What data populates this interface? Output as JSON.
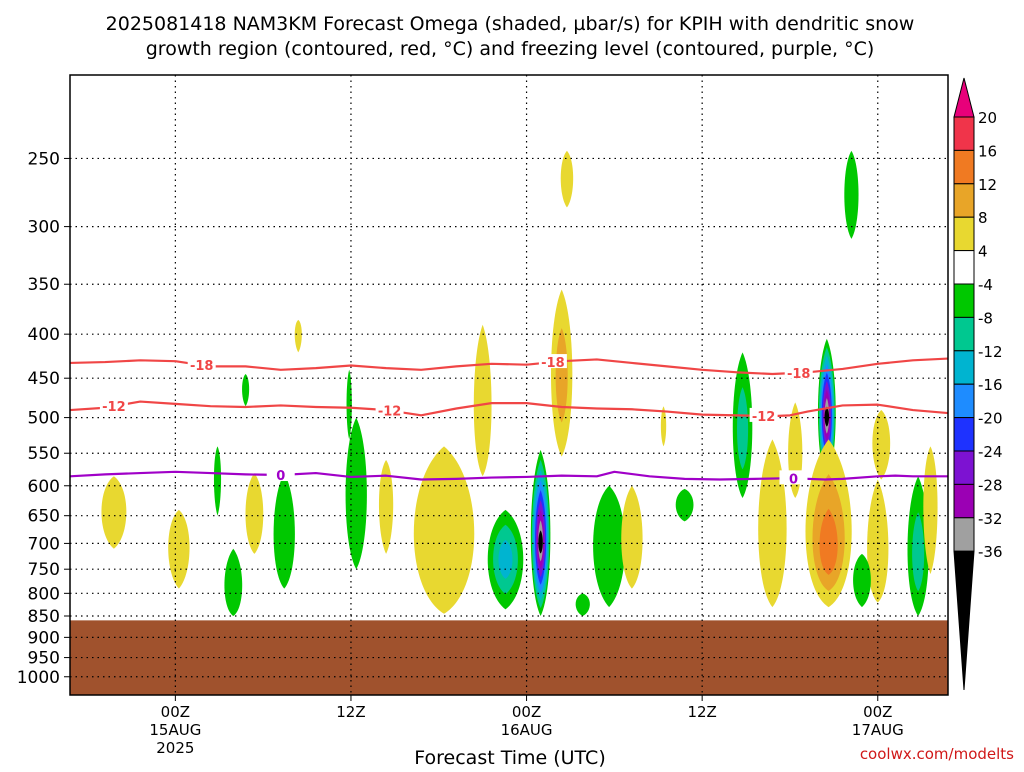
{
  "title": {
    "line1": "2025081418 NAM3KM Forecast Omega (shaded, µbar/s) for KPIH with dendritic snow",
    "line2": "growth region (contoured, red, °C) and freezing level (contoured, purple, °C)"
  },
  "credit": "coolwx.com/modelts",
  "chart_data": {
    "type": "heatmap",
    "title": "2025081418 NAM3KM Forecast Omega (shaded, µbar/s) for KPIH with dendritic snow growth region (contoured, red, °C) and freezing level (contoured, purple, °C)",
    "xlabel": "Forecast Time (UTC)",
    "xlim": [
      -6,
      44
    ],
    "ylim": [
      1050,
      200
    ],
    "y_scale": "log-pressure",
    "grid": true,
    "y_ticks": [
      250,
      300,
      350,
      400,
      450,
      500,
      550,
      600,
      650,
      700,
      750,
      800,
      850,
      900,
      950,
      1000
    ],
    "x_ticks": [
      {
        "h": 0,
        "label": "00Z",
        "sub1": "15AUG",
        "sub2": "2025"
      },
      {
        "h": 10,
        "label": "12Z",
        "sub1": "",
        "sub2": ""
      },
      {
        "h": 20,
        "label": "00Z",
        "sub1": "16AUG",
        "sub2": ""
      },
      {
        "h": 30,
        "label": "12Z",
        "sub1": "",
        "sub2": ""
      },
      {
        "h": 40,
        "label": "00Z",
        "sub1": "17AUG",
        "sub2": ""
      }
    ],
    "colorbar": {
      "levels": [
        20,
        16,
        12,
        8,
        4,
        -4,
        -8,
        -12,
        -16,
        -20,
        -24,
        -28,
        -32,
        -36
      ],
      "colors": [
        "#e8007a",
        "#f0344a",
        "#f07a22",
        "#e8a528",
        "#e8d830",
        "#ffffff",
        "#00c800",
        "#00c890",
        "#00b4d0",
        "#1e8cff",
        "#1e32ff",
        "#7d12d2",
        "#9b00b4",
        "#a0a0a0",
        "#000000"
      ]
    },
    "ground_color": "#a0522d",
    "ground_surface_hpa": 860,
    "contours": [
      {
        "level": -18,
        "color": "#f04646",
        "label": "-18",
        "points": [
          [
            -6,
            432
          ],
          [
            -4,
            431
          ],
          [
            -2,
            429
          ],
          [
            0,
            430
          ],
          [
            1,
            433
          ],
          [
            2,
            436
          ],
          [
            4,
            436
          ],
          [
            6,
            440
          ],
          [
            8,
            438
          ],
          [
            10,
            435
          ],
          [
            12,
            438
          ],
          [
            14,
            440
          ],
          [
            16,
            436
          ],
          [
            18,
            433
          ],
          [
            20,
            434
          ],
          [
            22,
            430
          ],
          [
            24,
            428
          ],
          [
            26,
            432
          ],
          [
            28,
            436
          ],
          [
            30,
            440
          ],
          [
            32,
            443
          ],
          [
            34,
            445
          ],
          [
            36,
            443
          ],
          [
            38,
            439
          ],
          [
            40,
            433
          ],
          [
            42,
            429
          ],
          [
            44,
            427
          ]
        ],
        "label_at": [
          [
            1.5,
            "-18"
          ],
          [
            21.5,
            "-18"
          ],
          [
            35.5,
            "-18"
          ]
        ]
      },
      {
        "level": -12,
        "color": "#f04646",
        "label": "-12",
        "points": [
          [
            -6,
            490
          ],
          [
            -4,
            487
          ],
          [
            -2,
            479
          ],
          [
            0,
            482
          ],
          [
            2,
            485
          ],
          [
            4,
            486
          ],
          [
            6,
            484
          ],
          [
            8,
            486
          ],
          [
            10,
            487
          ],
          [
            12,
            490
          ],
          [
            14,
            497
          ],
          [
            16,
            488
          ],
          [
            18,
            481
          ],
          [
            20,
            481
          ],
          [
            22,
            486
          ],
          [
            24,
            488
          ],
          [
            26,
            489
          ],
          [
            28,
            492
          ],
          [
            30,
            496
          ],
          [
            32,
            497
          ],
          [
            34,
            498
          ],
          [
            35,
            497
          ],
          [
            36,
            492
          ],
          [
            38,
            484
          ],
          [
            40,
            483
          ],
          [
            42,
            490
          ],
          [
            44,
            494
          ]
        ],
        "label_at": [
          [
            -3.5,
            "-12"
          ],
          [
            12.2,
            "-12"
          ],
          [
            33.5,
            "-12"
          ]
        ]
      },
      {
        "level": 0,
        "color": "#a000c8",
        "label": "0",
        "points": [
          [
            -6,
            585
          ],
          [
            -4,
            582
          ],
          [
            -2,
            580
          ],
          [
            0,
            578
          ],
          [
            2,
            580
          ],
          [
            4,
            582
          ],
          [
            6,
            583
          ],
          [
            8,
            580
          ],
          [
            10,
            586
          ],
          [
            12,
            584
          ],
          [
            14,
            590
          ],
          [
            16,
            589
          ],
          [
            18,
            587
          ],
          [
            20,
            586
          ],
          [
            22,
            584
          ],
          [
            24,
            585
          ],
          [
            25,
            578
          ],
          [
            27,
            585
          ],
          [
            29,
            589
          ],
          [
            31,
            590
          ],
          [
            33,
            589
          ],
          [
            35,
            588
          ],
          [
            37,
            590
          ],
          [
            38,
            589
          ],
          [
            40,
            585
          ],
          [
            41,
            584
          ],
          [
            42,
            585
          ],
          [
            44,
            585
          ]
        ],
        "label_at": [
          [
            6,
            "0"
          ],
          [
            35.2,
            "0"
          ]
        ]
      }
    ],
    "omega_cells": [
      {
        "h": 20.8,
        "p": 700,
        "hw": 0.55,
        "top": 545,
        "bot": 850,
        "v": -38
      },
      {
        "h": 18.8,
        "p": 730,
        "hw": 1.0,
        "top": 640,
        "bot": 835,
        "v": -17
      },
      {
        "h": 24.7,
        "p": 700,
        "hw": 0.9,
        "top": 600,
        "bot": 830,
        "v": -9
      },
      {
        "h": 32.3,
        "p": 520,
        "hw": 0.55,
        "top": 420,
        "bot": 620,
        "v": -13
      },
      {
        "h": 37.1,
        "p": 500,
        "hw": 0.5,
        "top": 405,
        "bot": 595,
        "v": -38
      },
      {
        "h": 37.2,
        "p": 720,
        "hw": 1.3,
        "top": 530,
        "bot": 830,
        "v": 15
      },
      {
        "h": 34.0,
        "p": 700,
        "hw": 0.8,
        "top": 530,
        "bot": 830,
        "v": 5
      },
      {
        "h": 15.3,
        "p": 700,
        "hw": 1.7,
        "top": 540,
        "bot": 845,
        "v": 6
      },
      {
        "h": 22.0,
        "p": 450,
        "hw": 0.6,
        "top": 355,
        "bot": 555,
        "v": 10
      },
      {
        "h": 17.5,
        "p": 500,
        "hw": 0.5,
        "top": 390,
        "bot": 585,
        "v": 5
      },
      {
        "h": 10.3,
        "p": 620,
        "hw": 0.6,
        "top": 500,
        "bot": 750,
        "v": -6
      },
      {
        "h": 12.0,
        "p": 620,
        "hw": 0.4,
        "top": 560,
        "bot": 720,
        "v": 4
      },
      {
        "h": 26.0,
        "p": 700,
        "hw": 0.6,
        "top": 600,
        "bot": 790,
        "v": 4
      },
      {
        "h": 40.0,
        "p": 750,
        "hw": 0.6,
        "top": 590,
        "bot": 820,
        "v": 6
      },
      {
        "h": 40.2,
        "p": 530,
        "hw": 0.5,
        "top": 490,
        "bot": 590,
        "v": 5
      },
      {
        "h": 42.3,
        "p": 730,
        "hw": 0.6,
        "top": 585,
        "bot": 850,
        "v": -10
      },
      {
        "h": 43.0,
        "p": 620,
        "hw": 0.4,
        "top": 540,
        "bot": 760,
        "v": 4
      },
      {
        "h": 35.3,
        "p": 560,
        "hw": 0.4,
        "top": 480,
        "bot": 620,
        "v": 5
      },
      {
        "h": -3.5,
        "p": 640,
        "hw": 0.7,
        "top": 585,
        "bot": 710,
        "v": 4
      },
      {
        "h": 0.2,
        "p": 700,
        "hw": 0.6,
        "top": 640,
        "bot": 790,
        "v": 4
      },
      {
        "h": 2.4,
        "p": 580,
        "hw": 0.2,
        "top": 540,
        "bot": 650,
        "v": -5
      },
      {
        "h": 3.3,
        "p": 800,
        "hw": 0.5,
        "top": 710,
        "bot": 850,
        "v": -5
      },
      {
        "h": 4.5,
        "p": 650,
        "hw": 0.5,
        "top": 580,
        "bot": 720,
        "v": 4
      },
      {
        "h": 6.2,
        "p": 700,
        "hw": 0.6,
        "top": 580,
        "bot": 790,
        "v": -5
      },
      {
        "h": 7.0,
        "p": 395,
        "hw": 0.2,
        "top": 385,
        "bot": 420,
        "v": 4
      },
      {
        "h": 4.0,
        "p": 460,
        "hw": 0.2,
        "top": 445,
        "bot": 485,
        "v": -5
      },
      {
        "h": 9.9,
        "p": 480,
        "hw": 0.15,
        "top": 440,
        "bot": 530,
        "v": -5
      },
      {
        "h": 22.3,
        "p": 262,
        "hw": 0.35,
        "top": 245,
        "bot": 285,
        "v": 4
      },
      {
        "h": 38.5,
        "p": 275,
        "hw": 0.4,
        "top": 245,
        "bot": 310,
        "v": -5
      },
      {
        "h": 27.8,
        "p": 510,
        "hw": 0.15,
        "top": 485,
        "bot": 540,
        "v": 4
      },
      {
        "h": 29.0,
        "p": 630,
        "hw": 0.5,
        "top": 605,
        "bot": 660,
        "v": -5
      },
      {
        "h": 23.2,
        "p": 820,
        "hw": 0.4,
        "top": 800,
        "bot": 850,
        "v": -5
      },
      {
        "h": 39.1,
        "p": 770,
        "hw": 0.5,
        "top": 720,
        "bot": 830,
        "v": -5
      }
    ]
  }
}
